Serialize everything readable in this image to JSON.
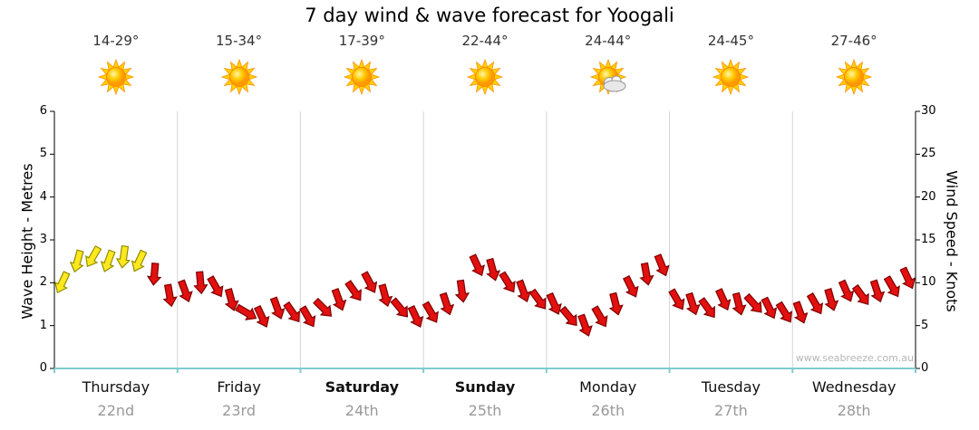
{
  "title": "7 day wind & wave forecast for Yoogali",
  "watermark": "www.seabreeze.com.au",
  "axes": {
    "left_label": "Wave Height - Metres",
    "right_label": "Wind Speed - Knots",
    "left_ticks": [
      0,
      1,
      2,
      3,
      4,
      5,
      6
    ],
    "right_ticks": [
      0,
      5,
      10,
      15,
      20,
      25,
      30
    ]
  },
  "days": [
    {
      "name": "Thursday",
      "date": "22nd",
      "temp": "14-29°",
      "icon": "sun-icon",
      "bold": false
    },
    {
      "name": "Friday",
      "date": "23rd",
      "temp": "15-34°",
      "icon": "sun-icon",
      "bold": false
    },
    {
      "name": "Saturday",
      "date": "24th",
      "temp": "17-39°",
      "icon": "sun-icon",
      "bold": true
    },
    {
      "name": "Sunday",
      "date": "25th",
      "temp": "22-44°",
      "icon": "sun-icon",
      "bold": true
    },
    {
      "name": "Monday",
      "date": "26th",
      "temp": "24-44°",
      "icon": "sun-cloud-icon",
      "bold": false
    },
    {
      "name": "Tuesday",
      "date": "27th",
      "temp": "24-45°",
      "icon": "sun-icon",
      "bold": false
    },
    {
      "name": "Wednesday",
      "date": "28th",
      "temp": "27-46°",
      "icon": "sun-icon",
      "bold": false
    }
  ],
  "chart_data": {
    "type": "scatter",
    "series_name": "wind-direction-arrows",
    "points_per_day": 8,
    "x_categories": [
      "Thursday",
      "Friday",
      "Saturday",
      "Sunday",
      "Monday",
      "Tuesday",
      "Wednesday"
    ],
    "y_left": {
      "label": "Wave Height - Metres",
      "range": [
        0,
        6
      ]
    },
    "y_right": {
      "label": "Wind Speed - Knots",
      "range": [
        0,
        30
      ]
    },
    "colors": {
      "yellow_fill": "#ffe81e",
      "yellow_stroke": "#8f8f00",
      "red_fill": "#e31010",
      "red_stroke": "#7d0000"
    },
    "points": [
      {
        "knots": 10,
        "dir_deg": 205,
        "color": "yellow"
      },
      {
        "knots": 12.5,
        "dir_deg": 195,
        "color": "yellow"
      },
      {
        "knots": 13,
        "dir_deg": 210,
        "color": "yellow"
      },
      {
        "knots": 12.5,
        "dir_deg": 200,
        "color": "yellow"
      },
      {
        "knots": 13,
        "dir_deg": 188,
        "color": "yellow"
      },
      {
        "knots": 12.5,
        "dir_deg": 205,
        "color": "yellow"
      },
      {
        "knots": 11,
        "dir_deg": 185,
        "color": "red"
      },
      {
        "knots": 8.5,
        "dir_deg": 170,
        "color": "red"
      },
      {
        "knots": 9,
        "dir_deg": 160,
        "color": "red"
      },
      {
        "knots": 10,
        "dir_deg": 175,
        "color": "red"
      },
      {
        "knots": 9.5,
        "dir_deg": 150,
        "color": "red"
      },
      {
        "knots": 8,
        "dir_deg": 165,
        "color": "red"
      },
      {
        "knots": 6.5,
        "dir_deg": 120,
        "color": "red"
      },
      {
        "knots": 6,
        "dir_deg": 155,
        "color": "red"
      },
      {
        "knots": 7,
        "dir_deg": 160,
        "color": "red"
      },
      {
        "knots": 6.5,
        "dir_deg": 145,
        "color": "red"
      },
      {
        "knots": 6,
        "dir_deg": 150,
        "color": "red"
      },
      {
        "knots": 7,
        "dir_deg": 135,
        "color": "red"
      },
      {
        "knots": 8,
        "dir_deg": 160,
        "color": "red"
      },
      {
        "knots": 9,
        "dir_deg": 145,
        "color": "red"
      },
      {
        "knots": 10,
        "dir_deg": 152,
        "color": "red"
      },
      {
        "knots": 8.5,
        "dir_deg": 165,
        "color": "red"
      },
      {
        "knots": 7,
        "dir_deg": 140,
        "color": "red"
      },
      {
        "knots": 6,
        "dir_deg": 155,
        "color": "red"
      },
      {
        "knots": 6.5,
        "dir_deg": 150,
        "color": "red"
      },
      {
        "knots": 7.5,
        "dir_deg": 162,
        "color": "red"
      },
      {
        "knots": 9,
        "dir_deg": 172,
        "color": "red"
      },
      {
        "knots": 12,
        "dir_deg": 155,
        "color": "red"
      },
      {
        "knots": 11.5,
        "dir_deg": 165,
        "color": "red"
      },
      {
        "knots": 10,
        "dir_deg": 148,
        "color": "red"
      },
      {
        "knots": 9,
        "dir_deg": 160,
        "color": "red"
      },
      {
        "knots": 8,
        "dir_deg": 144,
        "color": "red"
      },
      {
        "knots": 7.5,
        "dir_deg": 156,
        "color": "red"
      },
      {
        "knots": 6,
        "dir_deg": 140,
        "color": "red"
      },
      {
        "knots": 5,
        "dir_deg": 160,
        "color": "red"
      },
      {
        "knots": 6,
        "dir_deg": 150,
        "color": "red"
      },
      {
        "knots": 7.5,
        "dir_deg": 166,
        "color": "red"
      },
      {
        "knots": 9.5,
        "dir_deg": 154,
        "color": "red"
      },
      {
        "knots": 11,
        "dir_deg": 170,
        "color": "red"
      },
      {
        "knots": 12,
        "dir_deg": 158,
        "color": "red"
      },
      {
        "knots": 8,
        "dir_deg": 150,
        "color": "red"
      },
      {
        "knots": 7.5,
        "dir_deg": 162,
        "color": "red"
      },
      {
        "knots": 7,
        "dir_deg": 144,
        "color": "red"
      },
      {
        "knots": 8,
        "dir_deg": 156,
        "color": "red"
      },
      {
        "knots": 7.5,
        "dir_deg": 166,
        "color": "red"
      },
      {
        "knots": 7.5,
        "dir_deg": 138,
        "color": "red"
      },
      {
        "knots": 7,
        "dir_deg": 154,
        "color": "red"
      },
      {
        "knots": 6.5,
        "dir_deg": 148,
        "color": "red"
      },
      {
        "knots": 6.5,
        "dir_deg": 160,
        "color": "red"
      },
      {
        "knots": 7.5,
        "dir_deg": 150,
        "color": "red"
      },
      {
        "knots": 8,
        "dir_deg": 164,
        "color": "red"
      },
      {
        "knots": 9,
        "dir_deg": 156,
        "color": "red"
      },
      {
        "knots": 8.5,
        "dir_deg": 144,
        "color": "red"
      },
      {
        "knots": 9,
        "dir_deg": 162,
        "color": "red"
      },
      {
        "knots": 9.5,
        "dir_deg": 150,
        "color": "red"
      },
      {
        "knots": 10.5,
        "dir_deg": 155,
        "color": "red"
      }
    ]
  }
}
